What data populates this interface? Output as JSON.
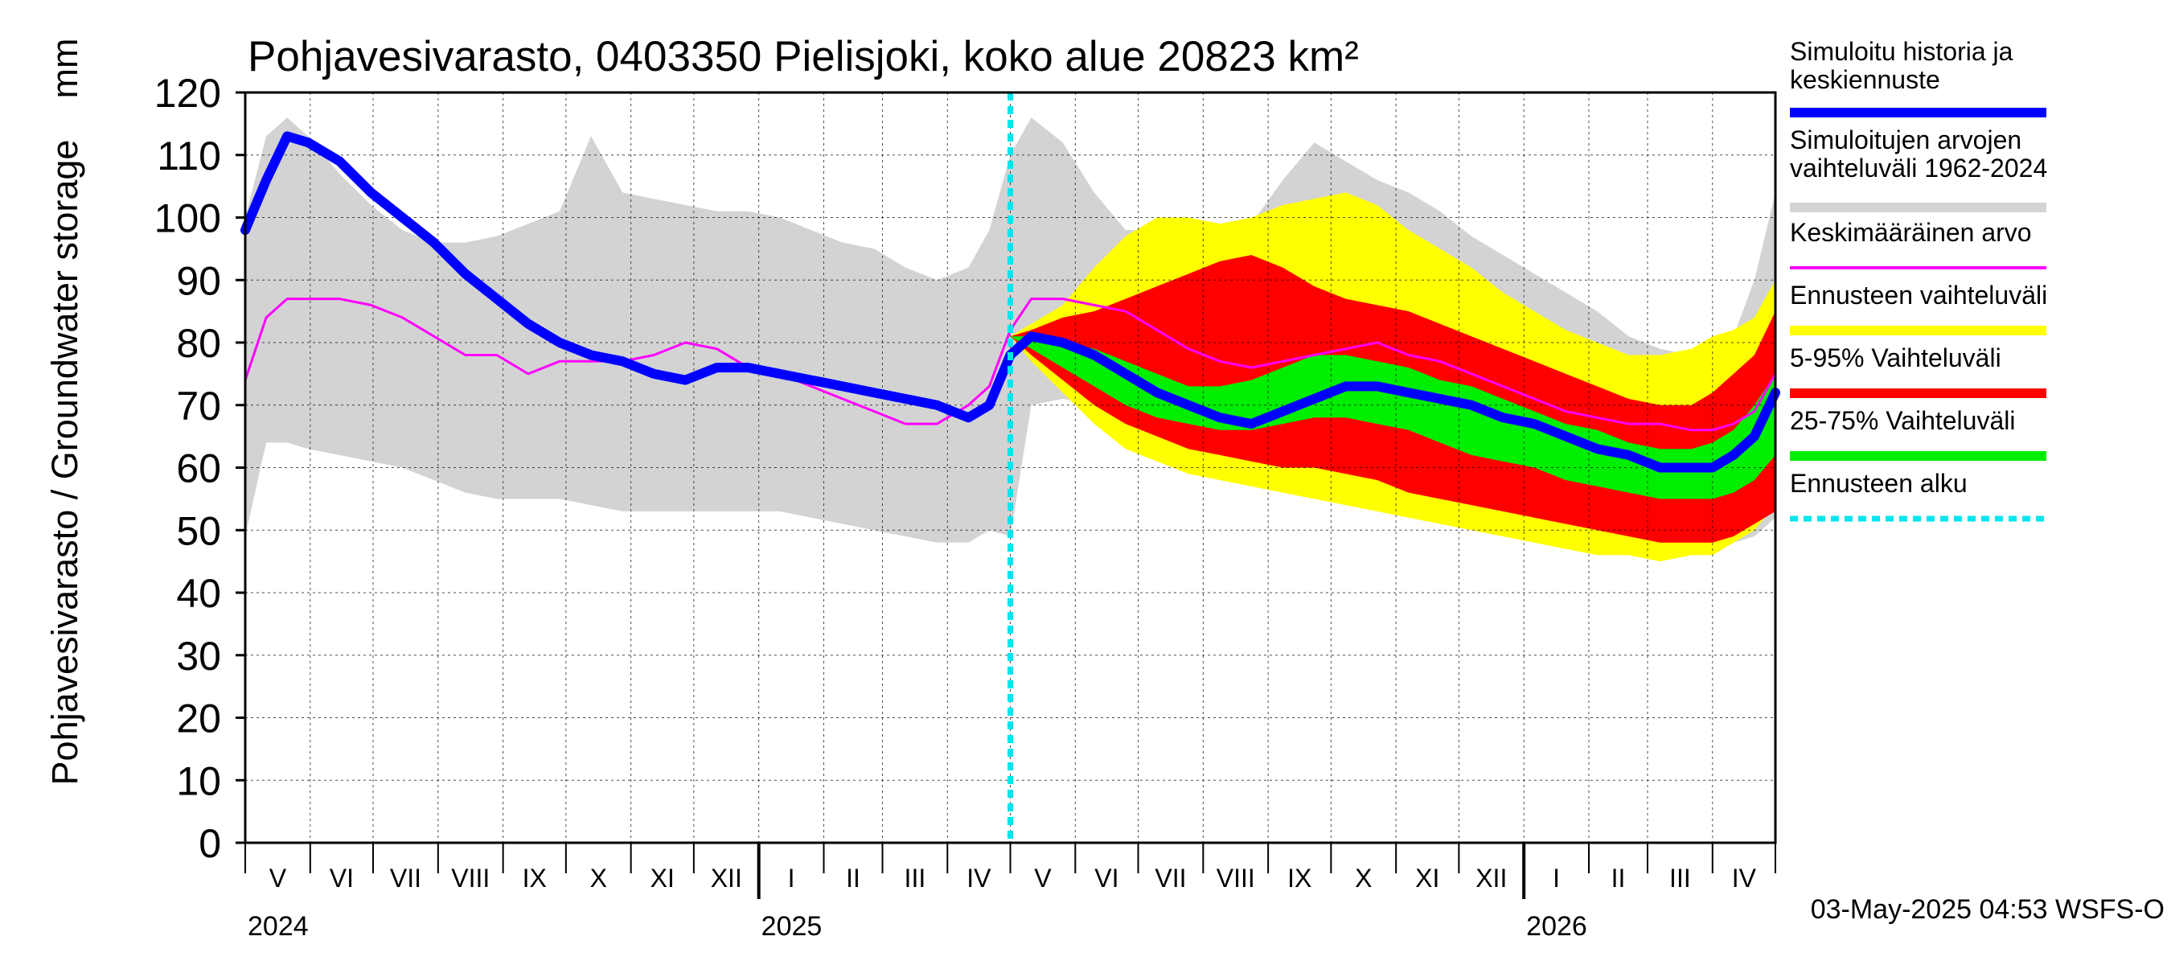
{
  "chart_data": {
    "type": "area",
    "title": "Pohjavesivarasto, 0403350 Pielisjoki, koko alue 20823 km²",
    "ylabel": "Pohjavesivarasto / Groundwater storage",
    "yunit": "mm",
    "ylim": [
      0,
      120
    ],
    "yticks": [
      0,
      10,
      20,
      30,
      40,
      50,
      60,
      70,
      80,
      90,
      100,
      110,
      120
    ],
    "xlim_days": [
      0,
      730
    ],
    "x_unit": "days since 2024-04-15",
    "grid": true,
    "forecast_start_day": 365,
    "months": [
      {
        "label": "V",
        "day": 15.5
      },
      {
        "label": "VI",
        "day": 46
      },
      {
        "label": "VII",
        "day": 76.5
      },
      {
        "label": "VIII",
        "day": 107.5
      },
      {
        "label": "IX",
        "day": 138
      },
      {
        "label": "X",
        "day": 168.5
      },
      {
        "label": "XI",
        "day": 199
      },
      {
        "label": "XII",
        "day": 229.5
      },
      {
        "label": "I",
        "day": 260.5
      },
      {
        "label": "II",
        "day": 290
      },
      {
        "label": "III",
        "day": 319.5
      },
      {
        "label": "IV",
        "day": 350
      },
      {
        "label": "V",
        "day": 380.5
      },
      {
        "label": "VI",
        "day": 411
      },
      {
        "label": "VII",
        "day": 441.5
      },
      {
        "label": "VIII",
        "day": 472.5
      },
      {
        "label": "IX",
        "day": 503
      },
      {
        "label": "X",
        "day": 533.5
      },
      {
        "label": "XI",
        "day": 564
      },
      {
        "label": "XII",
        "day": 594.5
      },
      {
        "label": "I",
        "day": 625.5
      },
      {
        "label": "II",
        "day": 655
      },
      {
        "label": "III",
        "day": 684.5
      },
      {
        "label": "IV",
        "day": 715
      }
    ],
    "month_boundaries": [
      0,
      31,
      61,
      92,
      123,
      153,
      184,
      214,
      245,
      276,
      304,
      335,
      365,
      396,
      426,
      457,
      488,
      518,
      549,
      579,
      610,
      641,
      669,
      700,
      730
    ],
    "year_boundaries": [
      245,
      610
    ],
    "years": [
      {
        "label": "2024",
        "day": 0
      },
      {
        "label": "2025",
        "day": 245
      },
      {
        "label": "2026",
        "day": 610
      }
    ],
    "x": [
      0,
      10,
      20,
      30,
      45,
      60,
      75,
      90,
      105,
      120,
      135,
      150,
      165,
      180,
      195,
      210,
      225,
      240,
      255,
      270,
      285,
      300,
      315,
      330,
      345,
      355,
      365,
      375,
      390,
      405,
      420,
      435,
      450,
      465,
      480,
      495,
      510,
      525,
      540,
      555,
      570,
      585,
      600,
      615,
      630,
      645,
      660,
      675,
      690,
      700,
      710,
      720,
      730
    ],
    "series": [
      {
        "name": "Simuloitujen arvojen vaihteluväli 1962-2024 (min)",
        "color": "#d3d3d3",
        "values": [
          49,
          64,
          64,
          63,
          62,
          61,
          60,
          58,
          56,
          55,
          55,
          55,
          54,
          53,
          53,
          53,
          53,
          53,
          53,
          52,
          51,
          50,
          49,
          48,
          48,
          50,
          49,
          70,
          71,
          70,
          68,
          66,
          63,
          61,
          60,
          60,
          59,
          59,
          57,
          55,
          55,
          55,
          55,
          54,
          52,
          50,
          49,
          48,
          47,
          46,
          48,
          49,
          52
        ]
      },
      {
        "name": "Simuloitujen arvojen vaihteluväli 1962-2024 (max)",
        "color": "#d3d3d3",
        "values": [
          100,
          113,
          116,
          113,
          107,
          102,
          98,
          96,
          96,
          97,
          99,
          101,
          113,
          104,
          103,
          102,
          101,
          101,
          100,
          98,
          96,
          95,
          92,
          90,
          92,
          98,
          110,
          116,
          112,
          104,
          98,
          98,
          98,
          97,
          99,
          106,
          112,
          109,
          106,
          104,
          101,
          97,
          94,
          91,
          88,
          85,
          81,
          79,
          78,
          78,
          81,
          90,
          104
        ]
      },
      {
        "name": "Ennusteen vaihteluväli (min)",
        "color": "#ffff00",
        "values": [
          null,
          null,
          null,
          null,
          null,
          null,
          null,
          null,
          null,
          null,
          null,
          null,
          null,
          null,
          null,
          null,
          null,
          null,
          null,
          null,
          null,
          null,
          null,
          null,
          null,
          null,
          81,
          77,
          72,
          67,
          63,
          61,
          59,
          58,
          57,
          56,
          55,
          54,
          53,
          52,
          51,
          50,
          49,
          48,
          47,
          46,
          46,
          45,
          46,
          46,
          48,
          50,
          54
        ]
      },
      {
        "name": "Ennusteen vaihteluväli (max)",
        "color": "#ffff00",
        "values": [
          null,
          null,
          null,
          null,
          null,
          null,
          null,
          null,
          null,
          null,
          null,
          null,
          null,
          null,
          null,
          null,
          null,
          null,
          null,
          null,
          null,
          null,
          null,
          null,
          null,
          null,
          81,
          83,
          86,
          92,
          97,
          100,
          100,
          99,
          100,
          102,
          103,
          104,
          102,
          98,
          95,
          92,
          88,
          85,
          82,
          80,
          78,
          78,
          79,
          81,
          82,
          84,
          90
        ]
      },
      {
        "name": "5-95% Vaihteluväli (min)",
        "color": "#ff0000",
        "values": [
          null,
          null,
          null,
          null,
          null,
          null,
          null,
          null,
          null,
          null,
          null,
          null,
          null,
          null,
          null,
          null,
          null,
          null,
          null,
          null,
          null,
          null,
          null,
          null,
          null,
          null,
          81,
          78,
          74,
          70,
          67,
          65,
          63,
          62,
          61,
          60,
          60,
          59,
          58,
          56,
          55,
          54,
          53,
          52,
          51,
          50,
          49,
          48,
          48,
          48,
          49,
          51,
          53
        ]
      },
      {
        "name": "5-95% Vaihteluväli (max)",
        "color": "#ff0000",
        "values": [
          null,
          null,
          null,
          null,
          null,
          null,
          null,
          null,
          null,
          null,
          null,
          null,
          null,
          null,
          null,
          null,
          null,
          null,
          null,
          null,
          null,
          null,
          null,
          null,
          null,
          null,
          81,
          82,
          84,
          85,
          87,
          89,
          91,
          93,
          94,
          92,
          89,
          87,
          86,
          85,
          83,
          81,
          79,
          77,
          75,
          73,
          71,
          70,
          70,
          72,
          75,
          78,
          85
        ]
      },
      {
        "name": "25-75% Vaihteluväli (min)",
        "color": "#00ee00",
        "values": [
          null,
          null,
          null,
          null,
          null,
          null,
          null,
          null,
          null,
          null,
          null,
          null,
          null,
          null,
          null,
          null,
          null,
          null,
          null,
          null,
          null,
          null,
          null,
          null,
          null,
          null,
          81,
          79,
          76,
          73,
          70,
          68,
          67,
          66,
          66,
          67,
          68,
          68,
          67,
          66,
          64,
          62,
          61,
          60,
          58,
          57,
          56,
          55,
          55,
          55,
          56,
          58,
          62
        ]
      },
      {
        "name": "25-75% Vaihteluväli (max)",
        "color": "#00ee00",
        "values": [
          null,
          null,
          null,
          null,
          null,
          null,
          null,
          null,
          null,
          null,
          null,
          null,
          null,
          null,
          null,
          null,
          null,
          null,
          null,
          null,
          null,
          null,
          null,
          null,
          null,
          null,
          81,
          81,
          80,
          79,
          77,
          75,
          73,
          73,
          74,
          76,
          78,
          78,
          77,
          76,
          74,
          73,
          71,
          69,
          67,
          66,
          64,
          63,
          63,
          64,
          66,
          70,
          75
        ]
      },
      {
        "name": "Keskimääräinen arvo",
        "color": "#ff00ff",
        "values": [
          74,
          84,
          87,
          87,
          87,
          86,
          84,
          81,
          78,
          78,
          75,
          77,
          77,
          77,
          78,
          80,
          79,
          76,
          75,
          73,
          71,
          69,
          67,
          67,
          70,
          73,
          82,
          87,
          87,
          86,
          85,
          82,
          79,
          77,
          76,
          77,
          78,
          79,
          80,
          78,
          77,
          75,
          73,
          71,
          69,
          68,
          67,
          67,
          66,
          66,
          67,
          69,
          75
        ]
      },
      {
        "name": "Simuloitu historia ja keskiennuste",
        "color": "#0000ff",
        "values": [
          98,
          106,
          113,
          112,
          109,
          104,
          100,
          96,
          91,
          87,
          83,
          80,
          78,
          77,
          75,
          74,
          76,
          76,
          75,
          74,
          73,
          72,
          71,
          70,
          68,
          70,
          78,
          81,
          80,
          78,
          75,
          72,
          70,
          68,
          67,
          69,
          71,
          73,
          73,
          72,
          71,
          70,
          68,
          67,
          65,
          63,
          62,
          60,
          60,
          60,
          62,
          65,
          72
        ]
      }
    ],
    "legend": [
      {
        "label": "Simuloitu historia ja keskiennuste",
        "color": "#0000ff",
        "style": "thick-line"
      },
      {
        "label": "Simuloitujen arvojen vaihteluväli 1962-2024",
        "color": "#d3d3d3",
        "style": "line"
      },
      {
        "label": "Keskimääräinen arvo",
        "color": "#ff00ff",
        "style": "thin-line"
      },
      {
        "label": "Ennusteen vaihteluväli",
        "color": "#ffff00",
        "style": "line"
      },
      {
        "label": "5-95% Vaihteluväli",
        "color": "#ff0000",
        "style": "line"
      },
      {
        "label": "25-75% Vaihteluväli",
        "color": "#00ee00",
        "style": "line"
      },
      {
        "label": "Ennusteen alku",
        "color": "#00e5ee",
        "style": "dashed"
      }
    ],
    "legend_placement": "right",
    "footer": "03-May-2025 04:53 WSFS-O"
  }
}
